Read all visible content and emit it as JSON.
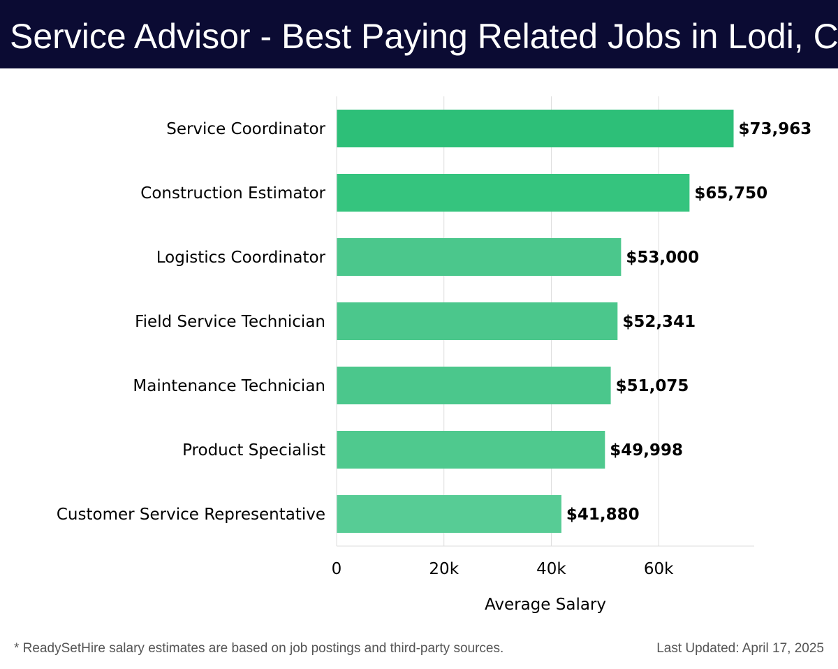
{
  "header": {
    "title": "Service Advisor - Best Paying Related Jobs in Lodi, CA"
  },
  "footer": {
    "note": "* ReadySetHire salary estimates are based on job postings and third-party sources.",
    "updated": "Last Updated: April 17, 2025"
  },
  "colors": {
    "header_bg": "#0b0b33",
    "bar_colors": [
      "#2dbf78",
      "#35c47e",
      "#4bc78c",
      "#4bc78c",
      "#4bc78c",
      "#4fc98e",
      "#57cc95"
    ],
    "grid": "#dddddd",
    "label_text": "#000000"
  },
  "chart_data": {
    "type": "bar",
    "orientation": "horizontal",
    "categories": [
      "Service Coordinator",
      "Construction Estimator",
      "Logistics Coordinator",
      "Field Service Technician",
      "Maintenance Technician",
      "Product Specialist",
      "Customer Service Representative"
    ],
    "values": [
      73963,
      65750,
      53000,
      52341,
      51075,
      49998,
      41880
    ],
    "value_labels": [
      "$73,963",
      "$65,750",
      "$53,000",
      "$52,341",
      "$51,075",
      "$49,998",
      "$41,880"
    ],
    "xlabel": "Average Salary",
    "ylabel": "",
    "xlim": [
      0,
      77800
    ],
    "xticks": [
      0,
      20000,
      40000,
      60000
    ],
    "xtick_labels": [
      "0",
      "20k",
      "40k",
      "60k"
    ],
    "grid": true,
    "legend": false
  }
}
